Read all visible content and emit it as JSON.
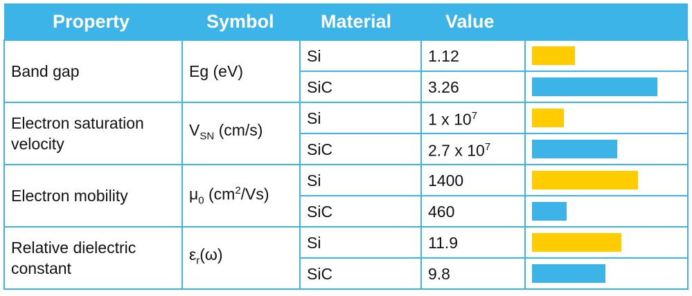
{
  "header": [
    "Property",
    "Symbol",
    "Material",
    "Value"
  ],
  "rows": [
    {
      "property": "Band gap",
      "symbol": [
        {
          "text": "Eg (eV)"
        }
      ],
      "materials": [
        {
          "material": "Si",
          "value": 1.12
        },
        {
          "material": "SiC",
          "value": 3.26
        }
      ]
    },
    {
      "property": "Electron saturation velocity",
      "symbol": [
        {
          "text": "V"
        },
        {
          "sub": "SN"
        },
        {
          "text": " (cm/s)"
        }
      ],
      "materials": [
        {
          "material": "Si",
          "value": 10000000,
          "mantissa": "1 x 10",
          "exponent": "7"
        },
        {
          "material": "SiC",
          "value": 27000000,
          "mantissa": "2.7 x 10",
          "exponent": "7"
        }
      ]
    },
    {
      "property": "Electron mobility",
      "symbol": [
        {
          "text": "μ"
        },
        {
          "sub": "0"
        },
        {
          "text": " (cm"
        },
        {
          "sup": "2"
        },
        {
          "text": "/Vs)"
        }
      ],
      "materials": [
        {
          "material": "Si",
          "value": 1400
        },
        {
          "material": "SiC",
          "value": 460
        }
      ]
    },
    {
      "property": "Relative dielectric constant",
      "symbol": [
        {
          "text": "ε"
        },
        {
          "sub": "r"
        },
        {
          "text": "(ω)"
        }
      ],
      "materials": [
        {
          "material": "Si",
          "value": 11.9
        },
        {
          "material": "SiC",
          "value": 9.8
        }
      ]
    }
  ]
}
